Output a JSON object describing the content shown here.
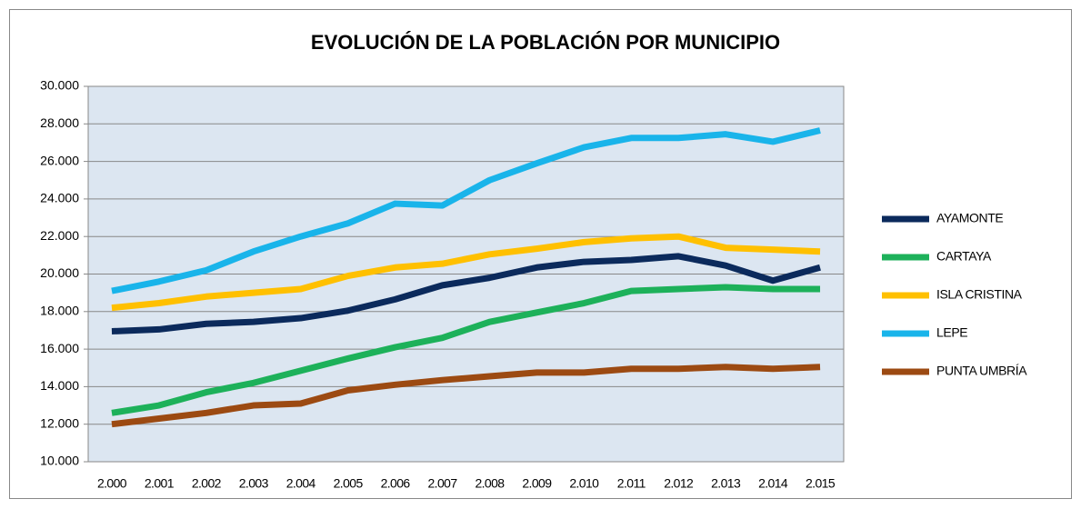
{
  "chart_data": {
    "type": "line",
    "title": "EVOLUCIÓN DE LA POBLACIÓN POR MUNICIPIO",
    "categories": [
      "2.000",
      "2.001",
      "2.002",
      "2.003",
      "2.004",
      "2.005",
      "2.006",
      "2.007",
      "2.008",
      "2.009",
      "2.010",
      "2.011",
      "2.012",
      "2.013",
      "2.014",
      "2.015"
    ],
    "series": [
      {
        "name": "AYAMONTE",
        "color": "#0b2a5c",
        "values": [
          16950,
          17050,
          17350,
          17450,
          17650,
          18050,
          18650,
          19400,
          19800,
          20350,
          20650,
          20750,
          20950,
          20450,
          19650,
          20350
        ]
      },
      {
        "name": "CARTAYA",
        "color": "#1db15a",
        "values": [
          12600,
          13000,
          13700,
          14200,
          14850,
          15500,
          16100,
          16600,
          17450,
          17950,
          18450,
          19100,
          19200,
          19300,
          19200,
          19200
        ]
      },
      {
        "name": "ISLA CRISTINA",
        "color": "#ffc000",
        "values": [
          18200,
          18450,
          18800,
          19000,
          19200,
          19900,
          20350,
          20550,
          21050,
          21350,
          21700,
          21900,
          22000,
          21400,
          21300,
          21200
        ]
      },
      {
        "name": "LEPE",
        "color": "#19b4ea",
        "values": [
          19100,
          19600,
          20200,
          21200,
          22000,
          22700,
          23750,
          23650,
          25000,
          25900,
          26750,
          27250,
          27250,
          27450,
          27050,
          27650
        ]
      },
      {
        "name": "PUNTA UMBRÍA",
        "color": "#9c4a12",
        "values": [
          12000,
          12300,
          12600,
          13000,
          13100,
          13800,
          14100,
          14350,
          14550,
          14750,
          14750,
          14950,
          14950,
          15050,
          14950,
          15050
        ]
      }
    ],
    "ylim": [
      10000,
      30000
    ],
    "yticks": [
      {
        "value": 10000,
        "label": "10.000"
      },
      {
        "value": 12000,
        "label": "12.000"
      },
      {
        "value": 14000,
        "label": "14.000"
      },
      {
        "value": 16000,
        "label": "16.000"
      },
      {
        "value": 18000,
        "label": "18.000"
      },
      {
        "value": 20000,
        "label": "20.000"
      },
      {
        "value": 22000,
        "label": "22.000"
      },
      {
        "value": 24000,
        "label": "24.000"
      },
      {
        "value": 26000,
        "label": "26.000"
      },
      {
        "value": 28000,
        "label": "28.000"
      },
      {
        "value": 30000,
        "label": "30.000"
      }
    ],
    "grid": true,
    "legend": "right"
  }
}
